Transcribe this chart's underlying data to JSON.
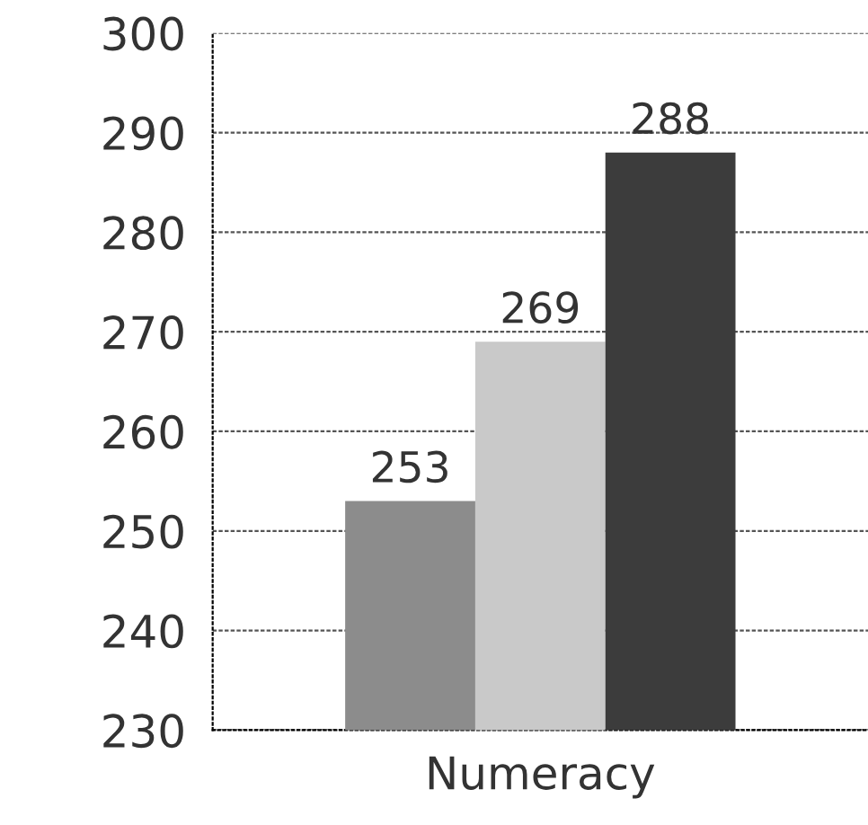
{
  "chart_data": {
    "type": "bar",
    "categories": [
      "Numeracy"
    ],
    "series": [
      {
        "color": "#8c8c8c",
        "values": [
          253
        ]
      },
      {
        "color": "#c9c9c9",
        "values": [
          269
        ]
      },
      {
        "color": "#3c3c3c",
        "values": [
          288
        ]
      }
    ],
    "ylim": [
      230,
      300
    ],
    "yticks": [
      230,
      240,
      250,
      260,
      270,
      280,
      290,
      300
    ],
    "grid": "y",
    "data_labels": true
  }
}
